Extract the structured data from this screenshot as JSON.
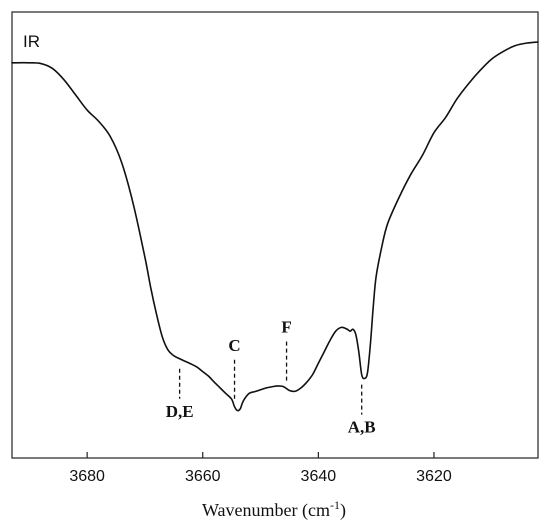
{
  "chart_data": {
    "type": "line",
    "title": "",
    "panel_label": "IR",
    "xlabel": "Wavenumber (cm",
    "xlabel_sup": "-1",
    "xlabel_close": ")",
    "ylabel": "",
    "x_reversed": true,
    "xlim": [
      3693,
      3602
    ],
    "ylim": [
      0.0,
      1.0
    ],
    "y_ticks_shown": false,
    "grid": false,
    "x_ticks": [
      {
        "value": 3680,
        "label": "3680"
      },
      {
        "value": 3660,
        "label": "3660"
      },
      {
        "value": 3640,
        "label": "3640"
      },
      {
        "value": 3620,
        "label": "3620"
      }
    ],
    "series": [
      {
        "x": [
          3693,
          3690,
          3688,
          3686,
          3684,
          3682,
          3680,
          3678,
          3676,
          3674,
          3672,
          3670,
          3669,
          3668,
          3667,
          3666,
          3665,
          3664,
          3663,
          3662,
          3661,
          3660,
          3659,
          3658,
          3657,
          3656,
          3655,
          3654.5,
          3654,
          3653.5,
          3653,
          3652,
          3651,
          3650,
          3649,
          3648,
          3647,
          3646,
          3645,
          3644,
          3643,
          3642,
          3641,
          3640,
          3639,
          3638,
          3637,
          3636,
          3635,
          3634.5,
          3634,
          3633.5,
          3633,
          3632.5,
          3632,
          3631.5,
          3631,
          3630.5,
          3630,
          3629,
          3628,
          3626,
          3624,
          3622,
          3620,
          3618,
          3616,
          3614,
          3612,
          3610,
          3608,
          3606,
          3604,
          3602
        ],
        "y": [
          0.945,
          0.945,
          0.943,
          0.93,
          0.9,
          0.86,
          0.82,
          0.79,
          0.75,
          0.68,
          0.57,
          0.43,
          0.35,
          0.28,
          0.22,
          0.185,
          0.17,
          0.162,
          0.155,
          0.148,
          0.14,
          0.128,
          0.116,
          0.1,
          0.085,
          0.07,
          0.055,
          0.035,
          0.025,
          0.03,
          0.05,
          0.07,
          0.075,
          0.08,
          0.085,
          0.088,
          0.09,
          0.088,
          0.078,
          0.076,
          0.085,
          0.1,
          0.12,
          0.15,
          0.18,
          0.21,
          0.235,
          0.245,
          0.24,
          0.235,
          0.24,
          0.225,
          0.18,
          0.12,
          0.11,
          0.125,
          0.2,
          0.3,
          0.38,
          0.46,
          0.52,
          0.59,
          0.65,
          0.7,
          0.76,
          0.8,
          0.85,
          0.89,
          0.925,
          0.955,
          0.975,
          0.99,
          0.997,
          1.0
        ]
      }
    ],
    "annotations": [
      {
        "label": "D,E",
        "x": 3664,
        "side": "below"
      },
      {
        "label": "C",
        "x": 3654.5,
        "side": "above"
      },
      {
        "label": "F",
        "x": 3645.5,
        "side": "above"
      },
      {
        "label": "A,B",
        "x": 3632.5,
        "side": "below"
      }
    ]
  }
}
